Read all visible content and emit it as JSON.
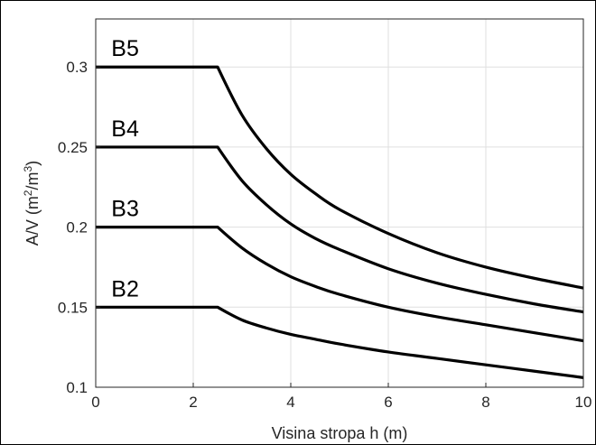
{
  "chart_data": {
    "type": "line",
    "xlabel": "Visina stropa h (m)",
    "ylabel": {
      "main": "A/V (m",
      "sup1": "2",
      "mid": "/m",
      "sup2": "3",
      "end": ")"
    },
    "xlim": [
      0,
      10
    ],
    "ylim": [
      0.1,
      0.33
    ],
    "xticks": [
      0,
      2,
      4,
      6,
      8,
      10
    ],
    "xtick_labels": [
      "0",
      "2",
      "4",
      "6",
      "8",
      "10"
    ],
    "yticks": [
      0.1,
      0.15,
      0.2,
      0.25,
      0.3
    ],
    "ytick_labels": [
      "0.1",
      "0.15",
      "0.2",
      "0.25",
      "0.3"
    ],
    "grid": true,
    "series": [
      {
        "name": "B5",
        "x": [
          0,
          2.5,
          3,
          3.5,
          4,
          4.5,
          5,
          6,
          7,
          8,
          9,
          10
        ],
        "y": [
          0.3,
          0.3,
          0.27,
          0.249,
          0.233,
          0.221,
          0.211,
          0.196,
          0.184,
          0.175,
          0.168,
          0.162
        ]
      },
      {
        "name": "B4",
        "x": [
          0,
          2.5,
          3,
          3.5,
          4,
          4.5,
          5,
          6,
          7,
          8,
          9,
          10
        ],
        "y": [
          0.25,
          0.25,
          0.229,
          0.214,
          0.202,
          0.193,
          0.186,
          0.174,
          0.165,
          0.158,
          0.152,
          0.147
        ]
      },
      {
        "name": "B3",
        "x": [
          0,
          2.5,
          3,
          3.5,
          4,
          4.5,
          5,
          6,
          7,
          8,
          9,
          10
        ],
        "y": [
          0.2,
          0.2,
          0.187,
          0.177,
          0.169,
          0.163,
          0.158,
          0.15,
          0.144,
          0.139,
          0.134,
          0.129
        ]
      },
      {
        "name": "B2",
        "x": [
          0,
          2.5,
          3,
          3.5,
          4,
          4.5,
          5,
          6,
          7,
          8,
          9,
          10
        ],
        "y": [
          0.15,
          0.15,
          0.142,
          0.137,
          0.133,
          0.13,
          0.127,
          0.122,
          0.118,
          0.114,
          0.11,
          0.106
        ]
      }
    ]
  }
}
